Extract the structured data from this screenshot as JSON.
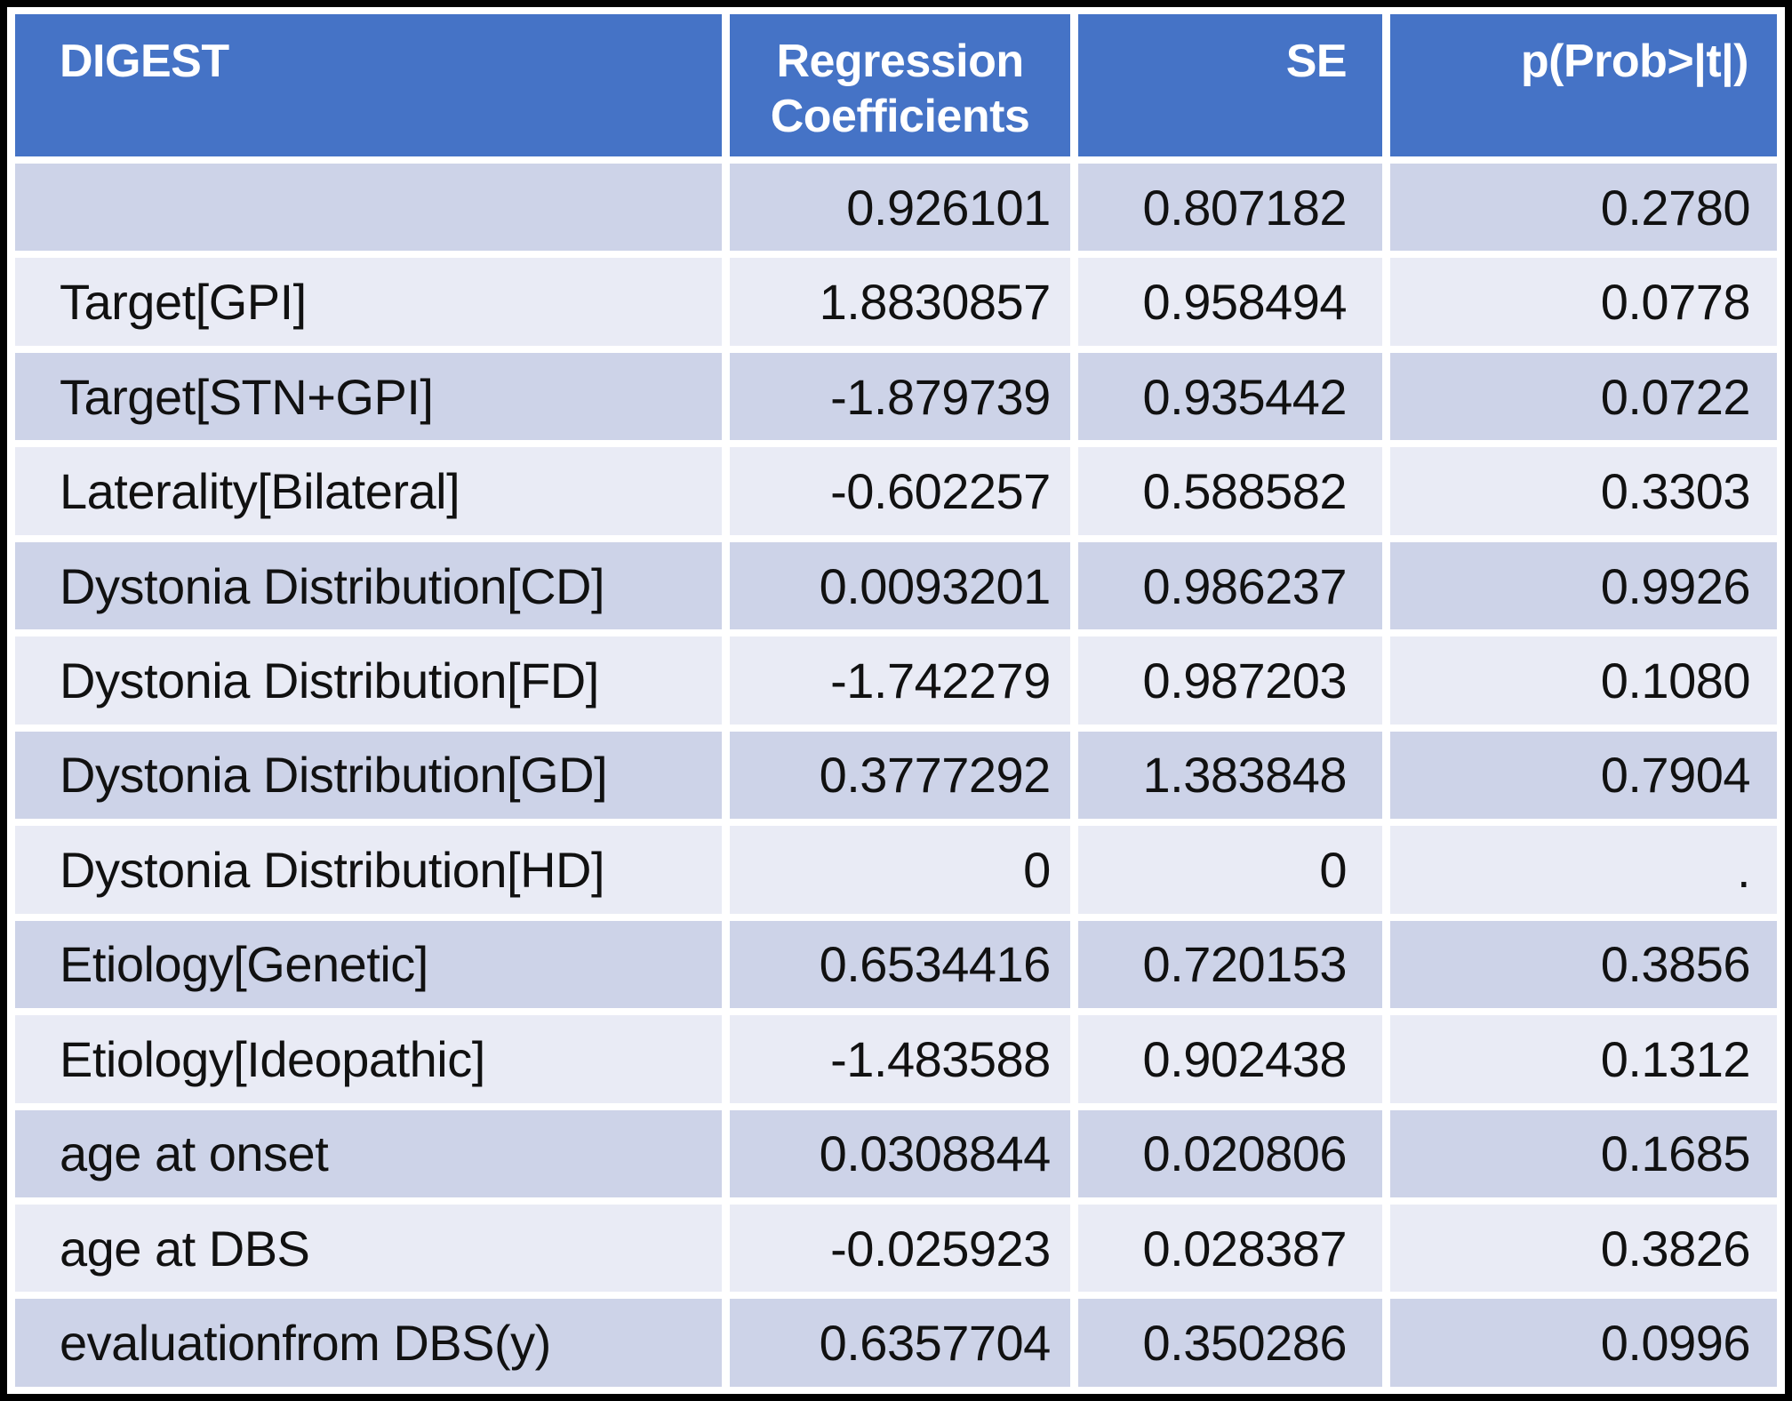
{
  "colors": {
    "header_bg": "#4573C6",
    "header_text": "#FFFFFF",
    "row_dark": "#CDD3E8",
    "row_light": "#E9EBF5",
    "outer_border": "#000000",
    "grid_gap": "#FFFFFF",
    "body_text": "#111111"
  },
  "table": {
    "header": {
      "digest": "DIGEST",
      "regression_coefficients": "Regression Coefficients",
      "se": "SE",
      "p_value": "p(Prob>|t|)"
    },
    "rows": [
      {
        "label": "",
        "coefficient": "0.926101",
        "se": "0.807182",
        "p": "0.2780"
      },
      {
        "label": "Target[GPI]",
        "coefficient": "1.8830857",
        "se": "0.958494",
        "p": "0.0778"
      },
      {
        "label": "Target[STN+GPI]",
        "coefficient": "-1.879739",
        "se": "0.935442",
        "p": "0.0722"
      },
      {
        "label": "Laterality[Bilateral]",
        "coefficient": "-0.602257",
        "se": "0.588582",
        "p": "0.3303"
      },
      {
        "label": "Dystonia Distribution[CD]",
        "coefficient": "0.0093201",
        "se": "0.986237",
        "p": "0.9926"
      },
      {
        "label": "Dystonia Distribution[FD]",
        "coefficient": "-1.742279",
        "se": "0.987203",
        "p": "0.1080"
      },
      {
        "label": "Dystonia Distribution[GD]",
        "coefficient": "0.3777292",
        "se": "1.383848",
        "p": "0.7904"
      },
      {
        "label": "Dystonia Distribution[HD]",
        "coefficient": "0",
        "se": "0",
        "p": "."
      },
      {
        "label": "Etiology[Genetic]",
        "coefficient": "0.6534416",
        "se": "0.720153",
        "p": "0.3856"
      },
      {
        "label": "Etiology[Ideopathic]",
        "coefficient": "-1.483588",
        "se": "0.902438",
        "p": "0.1312"
      },
      {
        "label": "age at onset",
        "coefficient": "0.0308844",
        "se": "0.020806",
        "p": "0.1685"
      },
      {
        "label": "age at DBS",
        "coefficient": "-0.025923",
        "se": "0.028387",
        "p": "0.3826"
      },
      {
        "label": "evaluationfrom DBS(y)",
        "coefficient": "0.6357704",
        "se": "0.350286",
        "p": "0.0996"
      }
    ]
  }
}
